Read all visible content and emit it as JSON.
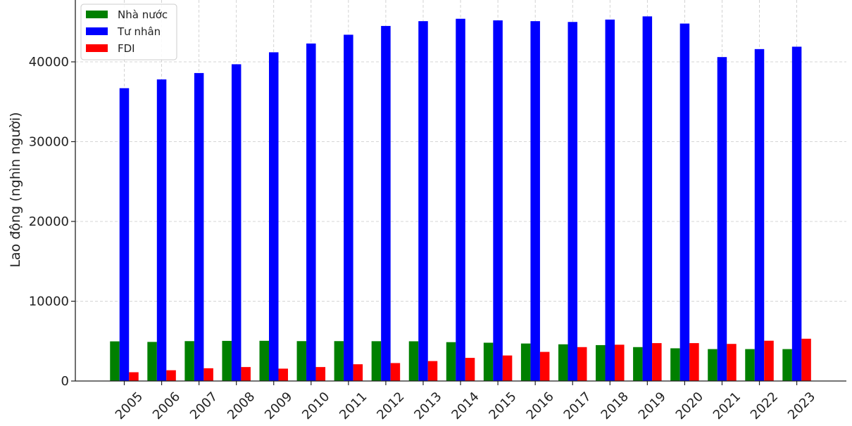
{
  "chart_data": {
    "type": "bar",
    "title": "",
    "xlabel": "",
    "ylabel": "Lao động (nghìn người)",
    "categories": [
      "2005",
      "2006",
      "2007",
      "2008",
      "2009",
      "2010",
      "2011",
      "2012",
      "2013",
      "2014",
      "2015",
      "2016",
      "2017",
      "2018",
      "2019",
      "2020",
      "2021",
      "2022",
      "2023"
    ],
    "ylim": [
      0,
      48000
    ],
    "yticks": [
      0,
      10000,
      20000,
      30000,
      40000
    ],
    "ytick_labels": [
      "0",
      "10000",
      "20000",
      "30000",
      "40000"
    ],
    "grid": true,
    "legend_position": "top-left",
    "series": [
      {
        "name": "Nhà nước",
        "color": "#008000",
        "values": [
          4970,
          4900,
          5000,
          5030,
          5040,
          5000,
          5000,
          4990,
          4980,
          4870,
          4800,
          4700,
          4600,
          4500,
          4250,
          4100,
          4000,
          4000,
          4000
        ]
      },
      {
        "name": "Tư nhân",
        "color": "#0000ff",
        "values": [
          36700,
          37800,
          38600,
          39700,
          41200,
          42300,
          43400,
          44500,
          45100,
          45400,
          45200,
          45100,
          45000,
          45300,
          45700,
          44800,
          40600,
          41600,
          41900
        ]
      },
      {
        "name": "FDI",
        "color": "#ff0000",
        "values": [
          1100,
          1350,
          1600,
          1750,
          1550,
          1750,
          2100,
          2250,
          2500,
          2900,
          3200,
          3650,
          4250,
          4550,
          4750,
          4750,
          4650,
          5050,
          5300
        ]
      }
    ]
  }
}
